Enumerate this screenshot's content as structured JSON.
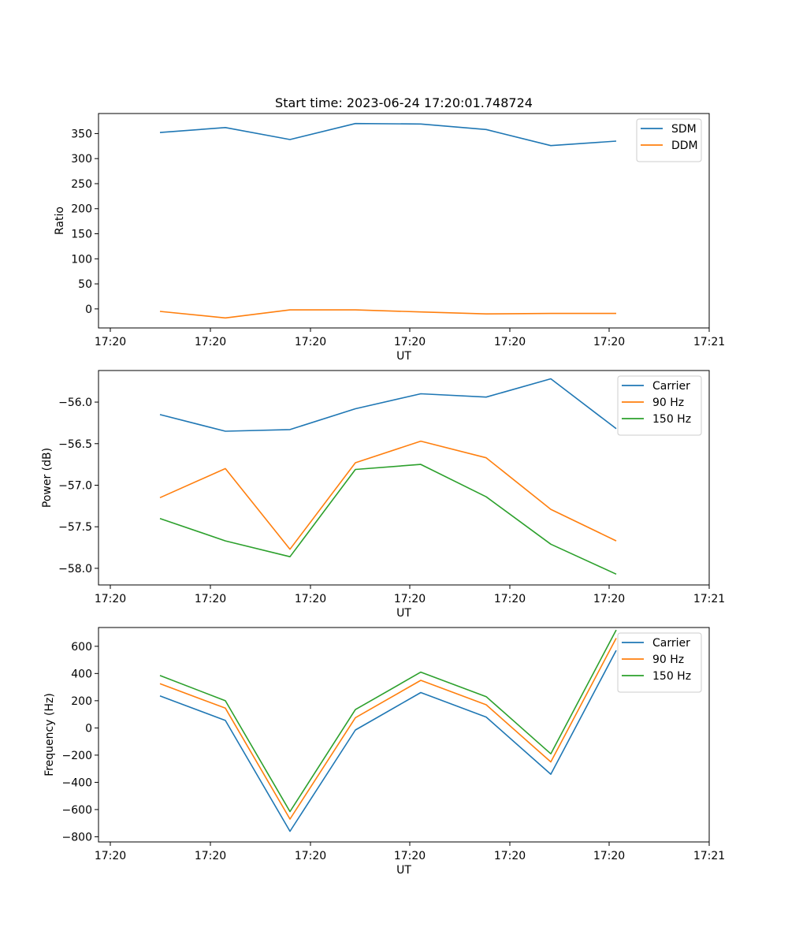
{
  "title": "Start time: 2023-06-24 17:20:01.748724",
  "x_tick_labels": [
    "17:20",
    "17:20",
    "17:20",
    "17:20",
    "17:20",
    "17:20",
    "17:20",
    "17:21"
  ],
  "colors": {
    "blue": "#1f77b4",
    "orange": "#ff7f0e",
    "green": "#2ca02c"
  },
  "chart_data": [
    {
      "type": "line",
      "title": "Start time: 2023-06-24 17:20:01.748724",
      "xlabel": "UT",
      "ylabel": "Ratio",
      "ylim": [
        -38,
        390
      ],
      "yticks": [
        0,
        50,
        100,
        150,
        200,
        250,
        300,
        350
      ],
      "legend": "top-right",
      "series": [
        {
          "name": "SDM",
          "values": [
            352,
            362,
            338,
            370,
            369,
            358,
            326,
            335
          ]
        },
        {
          "name": "DDM",
          "values": [
            -5,
            -18,
            -2,
            -2,
            -6,
            -10,
            -9,
            -9
          ]
        }
      ]
    },
    {
      "type": "line",
      "xlabel": "UT",
      "ylabel": "Power (dB)",
      "ylim": [
        -58.2,
        -55.62
      ],
      "yticks": [
        -58.0,
        -57.5,
        -57.0,
        -56.5,
        -56.0
      ],
      "legend": "top-right",
      "series": [
        {
          "name": "Carrier",
          "values": [
            -56.15,
            -56.35,
            -56.33,
            -56.08,
            -55.9,
            -55.94,
            -55.72,
            -56.32
          ]
        },
        {
          "name": "90 Hz",
          "values": [
            -57.15,
            -56.8,
            -57.77,
            -56.73,
            -56.47,
            -56.67,
            -57.29,
            -57.67
          ]
        },
        {
          "name": "150 Hz",
          "values": [
            -57.4,
            -57.67,
            -57.86,
            -56.81,
            -56.75,
            -57.14,
            -57.71,
            -58.07
          ]
        }
      ]
    },
    {
      "type": "line",
      "xlabel": "UT",
      "ylabel": "Frequency (Hz)",
      "ylim": [
        -838,
        738
      ],
      "yticks": [
        -800,
        -600,
        -400,
        -200,
        0,
        200,
        400,
        600
      ],
      "legend": "top-right",
      "series": [
        {
          "name": "Carrier",
          "values": [
            235,
            55,
            -760,
            -15,
            260,
            80,
            -340,
            570
          ]
        },
        {
          "name": "90 Hz",
          "values": [
            325,
            145,
            -670,
            75,
            350,
            170,
            -250,
            660
          ]
        },
        {
          "name": "150 Hz",
          "values": [
            385,
            200,
            -615,
            135,
            410,
            230,
            -190,
            720
          ]
        }
      ]
    }
  ]
}
